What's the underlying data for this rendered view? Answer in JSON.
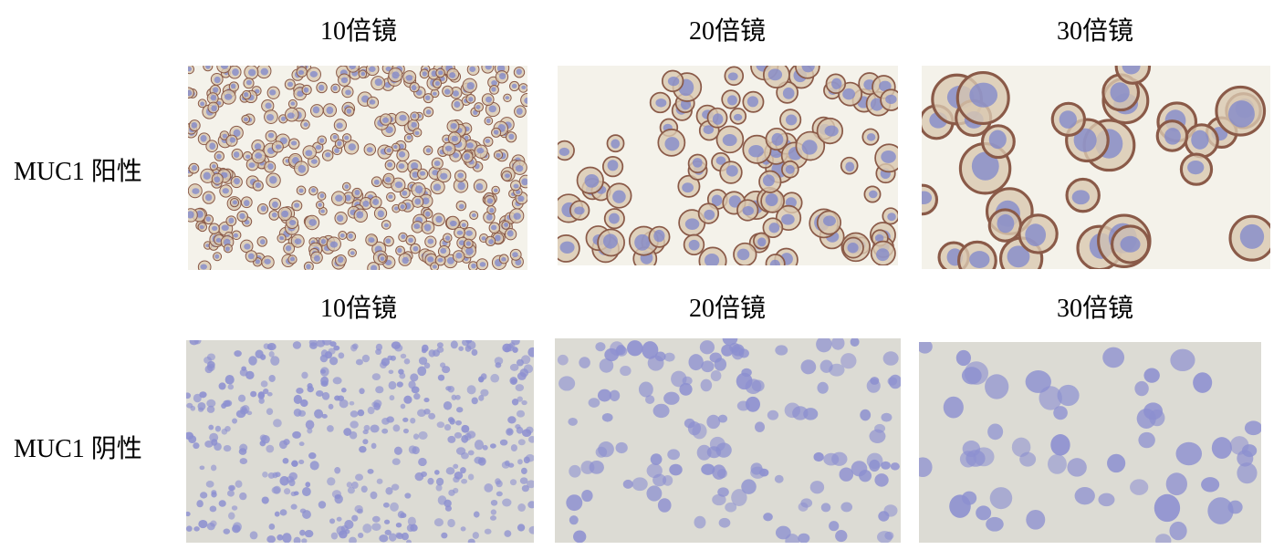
{
  "rows": [
    {
      "label": "MUC1 阳性",
      "panels": [
        {
          "magnification": "10倍镜"
        },
        {
          "magnification": "20倍镜"
        },
        {
          "magnification": "30倍镜"
        }
      ]
    },
    {
      "label": "MUC1 阴性",
      "panels": [
        {
          "magnification": "10倍镜"
        },
        {
          "magnification": "20倍镜"
        },
        {
          "magnification": "30倍镜"
        }
      ]
    }
  ],
  "colors": {
    "positive_background": "#f4f2ea",
    "positive_membrane": "#8a5a48",
    "positive_cytoplasm": "#d9c8b0",
    "nucleus": "#7d86cc",
    "negative_background": "#dcdbd4",
    "negative_cell": "#8c8fd0"
  }
}
